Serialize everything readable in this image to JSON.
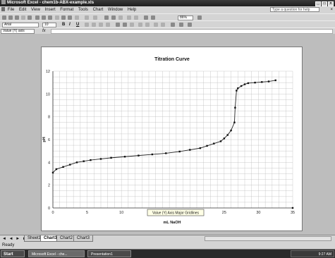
{
  "window": {
    "title": "Microsoft Excel - chem1b-ABX-example.xls"
  },
  "menubar": {
    "items": [
      "File",
      "Edit",
      "View",
      "Insert",
      "Format",
      "Tools",
      "Chart",
      "Window",
      "Help"
    ],
    "help_placeholder": "Type a question for help"
  },
  "toolbar": {
    "font": "Arial",
    "font_size": "10",
    "bold": "B",
    "italic": "I",
    "underline": "U",
    "zoom": "86%"
  },
  "formula_bar": {
    "name_box": "Value (Y) axis",
    "fx": "fx"
  },
  "chart_data": {
    "type": "scatter",
    "title": "Titration Curve",
    "xlabel": "mL NaOH",
    "ylabel": "pH",
    "xlim": [
      0,
      35
    ],
    "ylim": [
      0,
      12
    ],
    "xticks": [
      0,
      5,
      10,
      15,
      20,
      25,
      30,
      35
    ],
    "yticks": [
      0,
      2,
      4,
      6,
      8,
      10,
      12
    ],
    "grid": true,
    "series": [
      {
        "x": [
          0,
          0.5,
          1.5,
          2.5,
          3.5,
          4.5,
          5.5,
          7,
          8.5,
          10.5,
          12.5,
          14.5,
          16.5,
          18.5,
          20,
          21.5,
          22.5,
          23.5,
          24.5,
          25,
          25.5,
          26,
          26.5,
          26.6,
          26.8,
          27,
          27.5,
          28,
          28.5,
          29.5,
          30.5,
          31.5,
          32.5,
          35
        ],
        "y": [
          3.1,
          3.4,
          3.6,
          3.8,
          4.0,
          4.1,
          4.2,
          4.3,
          4.4,
          4.5,
          4.6,
          4.7,
          4.8,
          4.95,
          5.1,
          5.25,
          5.45,
          5.65,
          5.85,
          6.1,
          6.4,
          6.8,
          7.5,
          8.8,
          10.3,
          10.5,
          10.7,
          10.85,
          10.95,
          11.0,
          11.05,
          11.1,
          11.2,
          0
        ]
      }
    ],
    "tooltip": "Value (Y) Axis Major Gridlines",
    "colors": {
      "line": "#222222",
      "marker": "#111111",
      "grid": "#b5b5b5"
    }
  },
  "sheet_tabs": {
    "nav": "◄ ◄ ► ►|",
    "tabs": [
      "Sheet1",
      "Chart1",
      "Chart2",
      "Chart3"
    ],
    "active": "Chart1"
  },
  "status": "Ready",
  "taskbar": {
    "start": "Start",
    "tasks": [
      "Microsoft Excel - che...",
      "Presentation1"
    ],
    "clock": "9:27 AM"
  }
}
